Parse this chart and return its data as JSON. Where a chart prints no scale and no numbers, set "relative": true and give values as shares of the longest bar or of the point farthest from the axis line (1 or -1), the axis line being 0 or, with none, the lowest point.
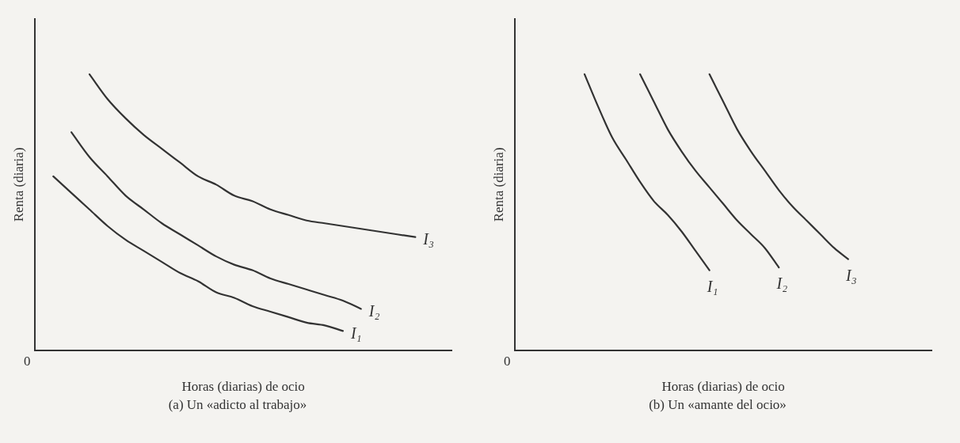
{
  "chart_data": [
    {
      "type": "line",
      "relative": true,
      "xlabel": "Horas (diarias) de ocio",
      "ylabel": "Renta (diaria)",
      "legend": false,
      "grid": false,
      "marker": "none",
      "line_style": "solid",
      "annotations": [
        "0",
        "(a) Un «adicto al trabajo»"
      ],
      "categories": [
        null,
        null,
        null,
        null,
        null,
        null,
        null,
        null,
        null,
        null,
        null,
        null,
        null,
        null,
        null,
        null,
        null,
        null,
        null,
        null,
        null,
        null,
        null,
        null
      ],
      "series": [
        {
          "name": "I₁",
          "color": "#333333",
          "values": [
            null,
            0.63,
            0.57,
            0.51,
            0.45,
            0.4,
            0.36,
            0.32,
            0.28,
            0.25,
            0.21,
            0.19,
            0.16,
            0.14,
            0.12,
            0.1,
            0.09,
            0.07,
            null,
            null,
            null,
            null,
            null,
            null
          ]
        },
        {
          "name": "I₂",
          "color": "#333333",
          "values": [
            null,
            null,
            0.79,
            0.7,
            0.63,
            0.56,
            0.51,
            0.46,
            0.42,
            0.38,
            0.34,
            0.31,
            0.29,
            0.26,
            0.24,
            0.22,
            0.2,
            0.18,
            0.15,
            null,
            null,
            null,
            null,
            null
          ]
        },
        {
          "name": "I₃",
          "color": "#333333",
          "values": [
            null,
            null,
            null,
            1.0,
            0.91,
            0.84,
            0.78,
            0.73,
            0.68,
            0.63,
            0.6,
            0.56,
            0.54,
            0.51,
            0.49,
            0.47,
            0.46,
            0.45,
            0.44,
            0.43,
            0.42,
            0.41,
            null,
            null
          ]
        }
      ]
    },
    {
      "type": "line",
      "relative": true,
      "xlabel": "Horas (diarias) de ocio",
      "ylabel": "Renta (diaria)",
      "legend": false,
      "grid": false,
      "marker": "none",
      "line_style": "solid",
      "annotations": [
        "0",
        "(b) Un «amante del ocio»"
      ],
      "categories": [
        null,
        null,
        null,
        null,
        null,
        null,
        null,
        null,
        null,
        null,
        null,
        null,
        null,
        null,
        null,
        null,
        null,
        null,
        null,
        null,
        null,
        null,
        null,
        null,
        null,
        null,
        null,
        null,
        null,
        null,
        null
      ],
      "series": [
        {
          "name": "I₁",
          "color": "#333333",
          "values": [
            null,
            null,
            null,
            null,
            null,
            1.0,
            0.88,
            0.77,
            0.69,
            0.61,
            0.54,
            0.49,
            0.43,
            0.36,
            0.29,
            null,
            null,
            null,
            null,
            null,
            null,
            null,
            null,
            null,
            null,
            null,
            null,
            null,
            null,
            null,
            null
          ]
        },
        {
          "name": "I₂",
          "color": "#333333",
          "values": [
            null,
            null,
            null,
            null,
            null,
            null,
            null,
            null,
            null,
            1.0,
            0.9,
            0.8,
            0.72,
            0.65,
            0.59,
            0.53,
            0.47,
            0.42,
            0.37,
            0.3,
            null,
            null,
            null,
            null,
            null,
            null,
            null,
            null,
            null,
            null,
            null
          ]
        },
        {
          "name": "I₃",
          "color": "#333333",
          "values": [
            null,
            null,
            null,
            null,
            null,
            null,
            null,
            null,
            null,
            null,
            null,
            null,
            null,
            null,
            1.0,
            0.9,
            0.8,
            0.72,
            0.65,
            0.58,
            0.52,
            0.47,
            0.42,
            0.37,
            0.33,
            null,
            null,
            null,
            null,
            null,
            null
          ]
        }
      ]
    }
  ]
}
